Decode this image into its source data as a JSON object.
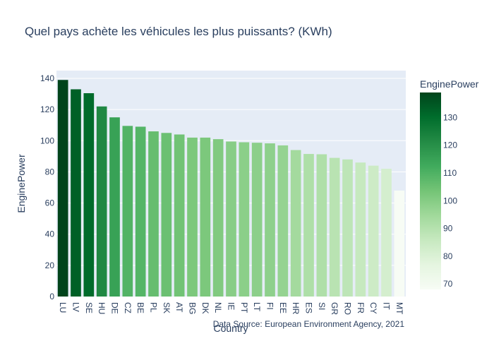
{
  "chart_data": {
    "type": "bar",
    "title": "Quel pays achète les véhicules les plus puissants? (KWh)",
    "xlabel": "Country",
    "ylabel": "EnginePower",
    "categories": [
      "LU",
      "LV",
      "SE",
      "HU",
      "DE",
      "CZ",
      "BE",
      "PL",
      "SK",
      "AT",
      "BG",
      "DK",
      "NL",
      "IE",
      "PT",
      "LT",
      "FI",
      "EE",
      "HR",
      "ES",
      "SI",
      "GR",
      "RO",
      "FR",
      "CY",
      "IT",
      "MT"
    ],
    "values": [
      139,
      133,
      130.5,
      122,
      115,
      109.5,
      109,
      106,
      105,
      104,
      102,
      102,
      101,
      99.5,
      99,
      98.7,
      98.3,
      97,
      94,
      91.5,
      91.3,
      89,
      88,
      86,
      84,
      82,
      68
    ],
    "ylim": [
      0,
      145
    ],
    "yticks": [
      0,
      20,
      40,
      60,
      80,
      100,
      120,
      140
    ],
    "grid": true,
    "colorscale": "Greens",
    "color_low": "#f7fcf5",
    "color_high": "#00441b",
    "colorbar": {
      "title": "EnginePower",
      "range": [
        68,
        139
      ],
      "ticks": [
        70,
        80,
        90,
        100,
        110,
        120,
        130
      ]
    },
    "annotation": "Data Source: European Environment Agency, 2021"
  }
}
